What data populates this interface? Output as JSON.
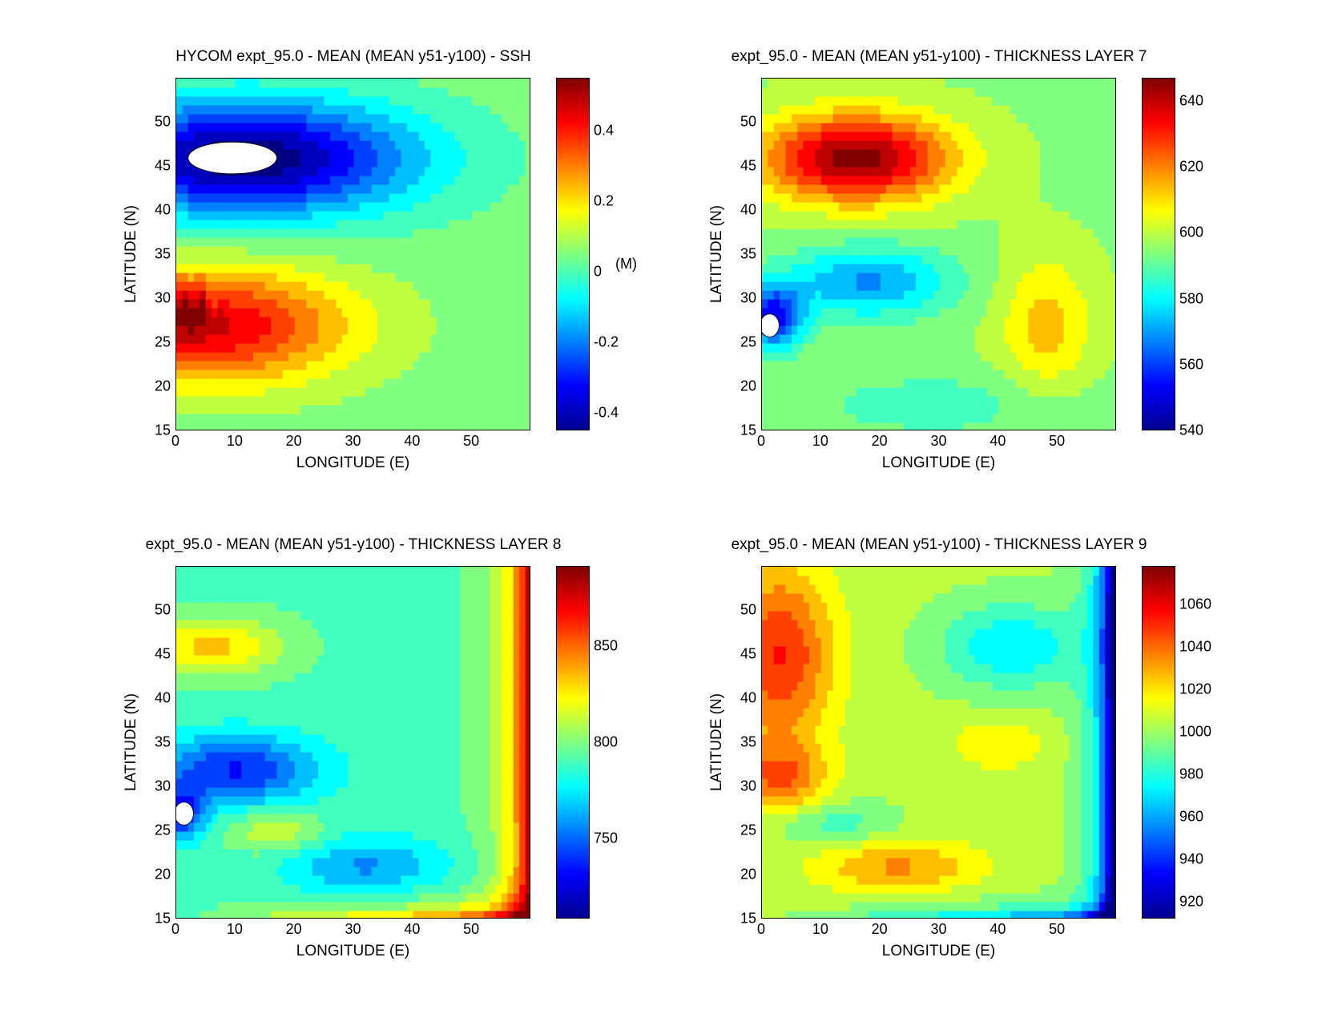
{
  "chart_data": [
    {
      "type": "heatmap",
      "title": "HYCOM expt_95.0 - MEAN (MEAN y51-y100) - SSH",
      "xlabel": "LONGITUDE (E)",
      "ylabel": "LATITUDE (N)",
      "xlim": [
        0,
        60
      ],
      "ylim": [
        15,
        55
      ],
      "xticks": [
        "0",
        "10",
        "20",
        "30",
        "40",
        "50"
      ],
      "yticks": [
        "15",
        "20",
        "25",
        "30",
        "35",
        "40",
        "45",
        "50"
      ],
      "colorbar": {
        "range": [
          -0.45,
          0.55
        ],
        "ticks": [
          "-0.4",
          "-0.2",
          "0",
          "0.2",
          "0.4"
        ],
        "tick_values": [
          -0.4,
          -0.2,
          0,
          0.2,
          0.4
        ],
        "unit": "(M)"
      },
      "features": [
        {
          "kind": "low",
          "lon": 12,
          "lat": 46,
          "value": -0.45,
          "note": "subpolar gyre minimum"
        },
        {
          "kind": "high",
          "lon": 6,
          "lat": 27,
          "value": 0.45,
          "note": "subtropical gyre maximum"
        },
        {
          "kind": "missing",
          "lon": 7,
          "lat": 46,
          "note": "white area below color range"
        }
      ]
    },
    {
      "type": "heatmap",
      "title": "expt_95.0 - MEAN (MEAN y51-y100) - THICKNESS LAYER 7",
      "xlabel": "LONGITUDE (E)",
      "ylabel": "LATITUDE (N)",
      "xlim": [
        0,
        60
      ],
      "ylim": [
        15,
        55
      ],
      "xticks": [
        "0",
        "10",
        "20",
        "30",
        "40",
        "50"
      ],
      "yticks": [
        "15",
        "20",
        "25",
        "30",
        "35",
        "40",
        "45",
        "50"
      ],
      "colorbar": {
        "range": [
          540,
          647
        ],
        "ticks": [
          "540",
          "560",
          "580",
          "600",
          "620",
          "640"
        ],
        "tick_values": [
          540,
          560,
          580,
          600,
          620,
          640
        ]
      },
      "features": [
        {
          "kind": "high",
          "lon": 16,
          "lat": 46,
          "value": 645
        },
        {
          "kind": "low",
          "lon": 3,
          "lat": 28,
          "value": 540
        },
        {
          "kind": "high",
          "lon": 48,
          "lat": 27,
          "value": 605
        },
        {
          "kind": "missing",
          "lon": 1,
          "lat": 27,
          "note": "white area below color range"
        }
      ]
    },
    {
      "type": "heatmap",
      "title": "expt_95.0 - MEAN (MEAN y51-y100) - THICKNESS LAYER 8",
      "xlabel": "LONGITUDE (E)",
      "ylabel": "LATITUDE (N)",
      "xlim": [
        0,
        60
      ],
      "ylim": [
        15,
        55
      ],
      "xticks": [
        "0",
        "10",
        "20",
        "30",
        "40",
        "50"
      ],
      "yticks": [
        "15",
        "20",
        "25",
        "30",
        "35",
        "40",
        "45",
        "50"
      ],
      "colorbar": {
        "range": [
          708,
          892
        ],
        "ticks": [
          "750",
          "800",
          "850"
        ],
        "tick_values": [
          750,
          800,
          850
        ]
      },
      "features": [
        {
          "kind": "high",
          "lon": 58,
          "lat": 20,
          "value": 890,
          "note": "eastern/southern boundary"
        },
        {
          "kind": "low",
          "lon": 2,
          "lat": 27,
          "value": 710
        },
        {
          "kind": "high",
          "lon": 6,
          "lat": 46,
          "value": 830
        },
        {
          "kind": "missing",
          "lon": 1,
          "lat": 27,
          "note": "white area below color range"
        }
      ]
    },
    {
      "type": "heatmap",
      "title": "expt_95.0 - MEAN (MEAN y51-y100) - THICKNESS LAYER 9",
      "xlabel": "LONGITUDE (E)",
      "ylabel": "LATITUDE (N)",
      "xlim": [
        0,
        60
      ],
      "ylim": [
        15,
        55
      ],
      "xticks": [
        "0",
        "10",
        "20",
        "30",
        "40",
        "50"
      ],
      "yticks": [
        "15",
        "20",
        "25",
        "30",
        "35",
        "40",
        "45",
        "50"
      ],
      "colorbar": {
        "range": [
          912,
          1078
        ],
        "ticks": [
          "920",
          "940",
          "960",
          "980",
          "1000",
          "1020",
          "1040",
          "1060"
        ],
        "tick_values": [
          920,
          940,
          960,
          980,
          1000,
          1020,
          1040,
          1060
        ]
      },
      "features": [
        {
          "kind": "high",
          "lon": 3,
          "lat": 45,
          "value": 1065
        },
        {
          "kind": "low",
          "lon": 58,
          "lat": 30,
          "value": 915,
          "note": "eastern boundary"
        },
        {
          "kind": "low",
          "lon": 42,
          "lat": 46,
          "value": 960
        },
        {
          "kind": "high",
          "lon": 23,
          "lat": 21,
          "value": 1030
        }
      ]
    }
  ]
}
